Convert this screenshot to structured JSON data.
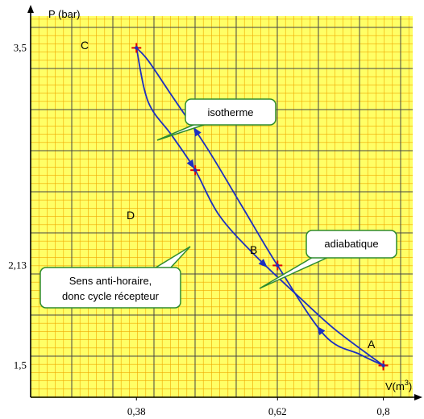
{
  "chart_data": {
    "type": "line",
    "title": "",
    "xlabel": "V(m",
    "xlabel_exp": "3",
    "xlabel_close": ")",
    "ylabel": "P (bar)",
    "xlim": [
      0.2,
      0.85
    ],
    "ylim": [
      1.3,
      3.7
    ],
    "grid": true,
    "colors": {
      "background": "#ffff66",
      "minor_grid": "#f0a800",
      "major_grid": "#444444",
      "curve": "#1c2fc0",
      "marker": "#e00000",
      "callout_border": "#2e8b2e"
    },
    "x_ticks": [
      {
        "value": 0.38,
        "label": "0,38"
      },
      {
        "value": 0.62,
        "label": "0,62"
      },
      {
        "value": 0.8,
        "label": "0,8"
      }
    ],
    "y_ticks": [
      {
        "value": 3.5,
        "label": "3,5"
      },
      {
        "value": 2.13,
        "label": "2,13"
      },
      {
        "value": 1.5,
        "label": "1,5"
      }
    ],
    "points": [
      {
        "name": "A",
        "x": 0.8,
        "y": 1.5
      },
      {
        "name": "B",
        "x": 0.62,
        "y": 2.13
      },
      {
        "name": "C",
        "x": 0.38,
        "y": 3.5
      },
      {
        "name": "D",
        "x": 0.48,
        "y": 2.73
      }
    ],
    "series": [
      {
        "from": "C",
        "to": "A",
        "path": [
          [
            0.38,
            3.5
          ],
          [
            0.4,
            3.16
          ],
          [
            0.44,
            2.95
          ],
          [
            0.48,
            2.73
          ],
          [
            0.52,
            2.45
          ],
          [
            0.58,
            2.2
          ],
          [
            0.66,
            1.92
          ],
          [
            0.72,
            1.72
          ],
          [
            0.8,
            1.5
          ]
        ]
      },
      {
        "from": "A",
        "to": "C",
        "path": [
          [
            0.8,
            1.5
          ],
          [
            0.76,
            1.57
          ],
          [
            0.7,
            1.69
          ],
          [
            0.62,
            2.13
          ],
          [
            0.56,
            2.5
          ],
          [
            0.5,
            2.87
          ],
          [
            0.44,
            3.2
          ],
          [
            0.4,
            3.42
          ],
          [
            0.38,
            3.5
          ]
        ]
      }
    ],
    "annotations": [
      {
        "text": "isotherme"
      },
      {
        "text": "adiabatique"
      },
      {
        "text": "Sens anti-horaire,",
        "line2": "donc cycle récepteur"
      }
    ]
  }
}
